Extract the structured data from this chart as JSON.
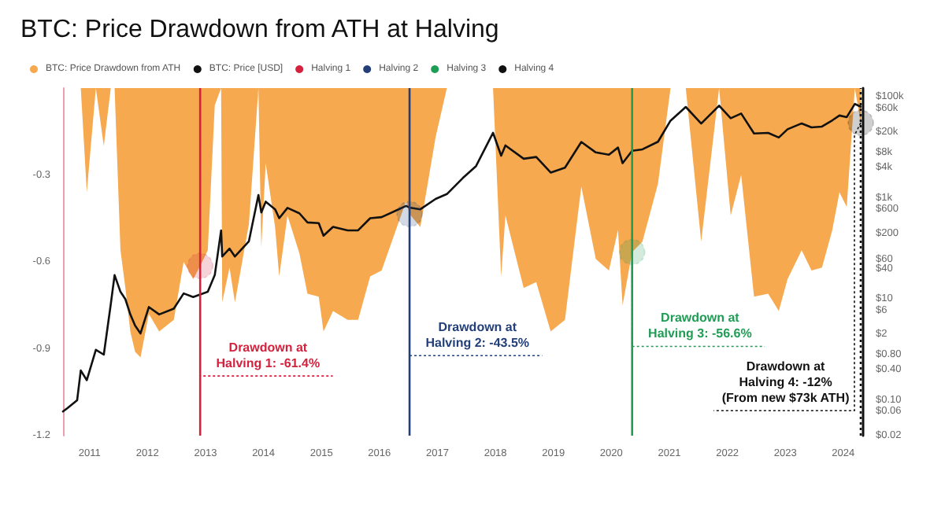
{
  "chart_data": {
    "type": "area",
    "title": "BTC: Price Drawdown from ATH at Halving",
    "x": [
      "2010-07-18",
      "2010-08-15",
      "2010-10-15",
      "2010-11-07",
      "2010-12-15",
      "2011-02-10",
      "2011-04-01",
      "2011-05-15",
      "2011-06-08",
      "2011-07-15",
      "2011-08-15",
      "2011-09-15",
      "2011-10-15",
      "2011-11-18",
      "2012-01-10",
      "2012-03-15",
      "2012-06-15",
      "2012-08-16",
      "2012-10-15",
      "2012-11-28",
      "2013-01-15",
      "2013-02-28",
      "2013-04-09",
      "2013-04-16",
      "2013-06-01",
      "2013-07-05",
      "2013-10-01",
      "2013-11-30",
      "2013-12-18",
      "2014-01-15",
      "2014-03-15",
      "2014-04-10",
      "2014-06-01",
      "2014-08-15",
      "2014-10-05",
      "2014-12-15",
      "2015-01-14",
      "2015-03-15",
      "2015-06-15",
      "2015-08-20",
      "2015-11-04",
      "2016-01-15",
      "2016-06-17",
      "2016-07-09",
      "2016-09-15",
      "2016-12-20",
      "2017-03-01",
      "2017-06-10",
      "2017-09-01",
      "2017-12-17",
      "2018-02-06",
      "2018-03-05",
      "2018-06-28",
      "2018-09-15",
      "2018-12-15",
      "2019-03-15",
      "2019-06-26",
      "2019-09-25",
      "2019-12-17",
      "2020-02-12",
      "2020-03-12",
      "2020-05-11",
      "2020-07-15",
      "2020-10-21",
      "2021-01-08",
      "2021-04-14",
      "2021-07-20",
      "2021-11-10",
      "2022-01-22",
      "2022-03-29",
      "2022-06-18",
      "2022-09-15",
      "2022-11-21",
      "2023-01-15",
      "2023-04-14",
      "2023-06-15",
      "2023-08-20",
      "2023-10-24",
      "2023-12-08",
      "2024-01-23",
      "2024-03-14",
      "2024-04-20"
    ],
    "series": [
      {
        "name": "BTC: Price Drawdown from ATH",
        "color": "#f6a94f",
        "values": [
          0,
          0,
          0,
          0,
          -0.36,
          0,
          -0.2,
          0,
          0,
          -0.56,
          -0.69,
          -0.84,
          -0.91,
          -0.93,
          -0.78,
          -0.84,
          -0.8,
          -0.6,
          -0.66,
          -0.614,
          -0.56,
          -0.06,
          0,
          -0.74,
          -0.62,
          -0.74,
          -0.47,
          0,
          -0.55,
          -0.26,
          -0.48,
          -0.65,
          -0.44,
          -0.57,
          -0.71,
          -0.72,
          -0.84,
          -0.77,
          -0.8,
          -0.8,
          -0.65,
          -0.63,
          -0.39,
          -0.435,
          -0.48,
          -0.17,
          0,
          0,
          0,
          0,
          -0.65,
          -0.44,
          -0.69,
          -0.67,
          -0.84,
          -0.8,
          -0.34,
          -0.59,
          -0.63,
          -0.49,
          -0.75,
          -0.566,
          -0.53,
          -0.33,
          0,
          0,
          -0.53,
          0,
          -0.44,
          -0.3,
          -0.72,
          -0.71,
          -0.77,
          -0.66,
          -0.56,
          -0.63,
          -0.62,
          -0.49,
          -0.36,
          -0.41,
          0,
          -0.12
        ]
      },
      {
        "name": "BTC: Price [USD]",
        "type": "line",
        "axis": "y2",
        "color": "#111111",
        "values": [
          0.06,
          0.07,
          0.1,
          0.39,
          0.25,
          1,
          0.8,
          8,
          30,
          14,
          10,
          5,
          3,
          2.1,
          7,
          5,
          6.5,
          13,
          11,
          12.4,
          14,
          30,
          230,
          70,
          100,
          70,
          140,
          1150,
          520,
          850,
          600,
          400,
          640,
          500,
          330,
          320,
          180,
          270,
          230,
          230,
          400,
          420,
          700,
          650,
          600,
          960,
          1200,
          2500,
          4300,
          19500,
          6900,
          11000,
          6000,
          6500,
          3200,
          4000,
          12900,
          8000,
          7200,
          10000,
          4900,
          8600,
          9200,
          13000,
          34000,
          63500,
          29800,
          67500,
          38000,
          47000,
          19000,
          19500,
          15800,
          23000,
          30000,
          25000,
          26000,
          34500,
          43000,
          40000,
          73000,
          64000
        ]
      }
    ],
    "xlim": [
      "2010-07-18",
      "2024-05-05"
    ],
    "xticks": [
      "2011",
      "2012",
      "2013",
      "2014",
      "2015",
      "2016",
      "2017",
      "2018",
      "2019",
      "2020",
      "2021",
      "2022",
      "2023",
      "2024"
    ],
    "ylim": [
      -1.2,
      0
    ],
    "yticks": [
      -0.3,
      -0.6,
      -0.9,
      -1.2
    ],
    "y2lim": [
      0.02,
      150000
    ],
    "y2ticks": [
      {
        "value": 100000,
        "label": "$100k"
      },
      {
        "value": 60000,
        "label": "$60k"
      },
      {
        "value": 20000,
        "label": "$20k"
      },
      {
        "value": 8000,
        "label": "$8k"
      },
      {
        "value": 4000,
        "label": "$4k"
      },
      {
        "value": 1000,
        "label": "$1k"
      },
      {
        "value": 600,
        "label": "$600"
      },
      {
        "value": 200,
        "label": "$200"
      },
      {
        "value": 60,
        "label": "$60"
      },
      {
        "value": 40,
        "label": "$40"
      },
      {
        "value": 10,
        "label": "$10"
      },
      {
        "value": 6,
        "label": "$6"
      },
      {
        "value": 2,
        "label": "$2"
      },
      {
        "value": 0.8,
        "label": "$0.80"
      },
      {
        "value": 0.4,
        "label": "$0.40"
      },
      {
        "value": 0.1,
        "label": "$0.10"
      },
      {
        "value": 0.06,
        "label": "$0.06"
      },
      {
        "value": 0.02,
        "label": "$0.02"
      }
    ],
    "log": "y2",
    "ref_lines": [
      {
        "axis": "x",
        "value": "2012-11-28",
        "label": "Halving 1",
        "color": "#d4213d"
      },
      {
        "axis": "x",
        "value": "2016-07-09",
        "label": "Halving 2",
        "color": "#223f7a"
      },
      {
        "axis": "x",
        "value": "2020-05-11",
        "label": "Halving 3",
        "color": "#1f9d55"
      },
      {
        "axis": "x",
        "value": "2024-04-20",
        "label": "Halving 4",
        "color": "#111111",
        "line_style": "dotted"
      }
    ],
    "annotations": [
      {
        "text": "Drawdown at\nHalving 1: -61.4%",
        "x": "2012-11-28",
        "y": -0.614
      },
      {
        "text": "Drawdown at\nHalving 2: -43.5%",
        "x": "2016-07-09",
        "y": -0.435
      },
      {
        "text": "Drawdown at\nHalving 3: -56.6%",
        "x": "2020-05-11",
        "y": -0.566
      },
      {
        "text": "Drawdown at\nHalving 4: -12%\n(From new $73k ATH)",
        "x": "2024-04-20",
        "y": -0.12
      }
    ],
    "legend": "top left",
    "grid": false
  }
}
